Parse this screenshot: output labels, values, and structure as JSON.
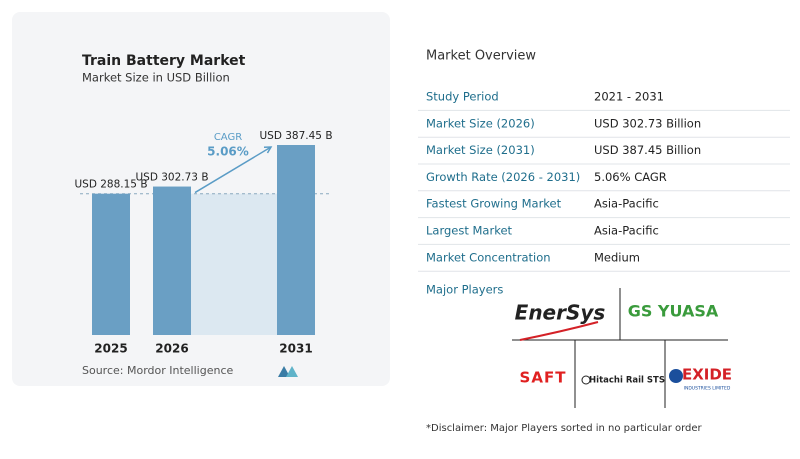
{
  "chart_data": {
    "type": "bar",
    "title": "Train Battery Market",
    "subtitle": "Market Size in USD Billion",
    "categories": [
      "2025",
      "2026",
      "2031"
    ],
    "values": [
      288.15,
      302.73,
      387.45
    ],
    "value_labels": [
      "USD 288.15 B",
      "USD 302.73 B",
      "USD 387.45 B"
    ],
    "color": "#6a9fc4",
    "cagr_label": "CAGR",
    "cagr_value": "5.06%",
    "source": "Source:  Mordor Intelligence"
  },
  "overview": {
    "title": "Market Overview",
    "rows": [
      [
        "Study Period",
        "2021 - 2031"
      ],
      [
        "Market Size (2026)",
        "USD 302.73 Billion"
      ],
      [
        "Market Size (2031)",
        "USD 387.45 Billion"
      ],
      [
        "Growth Rate (2026 - 2031)",
        "5.06% CAGR"
      ],
      [
        "Fastest Growing Market",
        "Asia-Pacific"
      ],
      [
        "Largest Market",
        "Asia-Pacific"
      ],
      [
        "Market Concentration",
        "Medium"
      ]
    ],
    "major_players_label": "Major Players",
    "players": [
      "EnerSys",
      "GS YUASA",
      "SAFT",
      "Hitachi Rail STS",
      "EXIDE",
      "INDUSTRIES LIMITED"
    ],
    "disclaimer": "*Disclaimer: Major Players sorted in no particular order"
  }
}
